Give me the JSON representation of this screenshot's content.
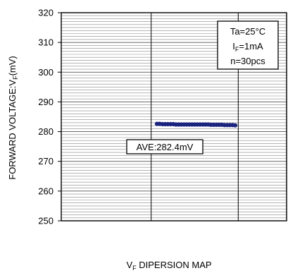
{
  "chart_data": {
    "type": "scatter",
    "title": "",
    "xlabel_main": "V",
    "xlabel_sub": "F",
    "xlabel_rest": " DIPERSION MAP",
    "ylabel_main": "FORWARD VOLTAGE:V",
    "ylabel_sub": "F",
    "ylabel_rest": "(mV)",
    "ylim": [
      250,
      320
    ],
    "yticks": [
      250,
      260,
      270,
      280,
      290,
      300,
      310,
      320
    ],
    "grid": true,
    "conditions": {
      "line1": "Ta=25°C",
      "line2_main": "I",
      "line2_sub": "F",
      "line2_rest": "=1mA",
      "line3": "n=30pcs"
    },
    "annotation": "AVE:282.4mV",
    "marker_color": "#1a237e",
    "series": [
      {
        "values": [
          282.6,
          282.6,
          282.5,
          282.5,
          282.5,
          282.5,
          282.5,
          282.4,
          282.4,
          282.4,
          282.4,
          282.4,
          282.4,
          282.4,
          282.4,
          282.4,
          282.4,
          282.4,
          282.4,
          282.4,
          282.3,
          282.3,
          282.3,
          282.3,
          282.3,
          282.2,
          282.2,
          282.2,
          282.2,
          282.1
        ]
      }
    ]
  }
}
